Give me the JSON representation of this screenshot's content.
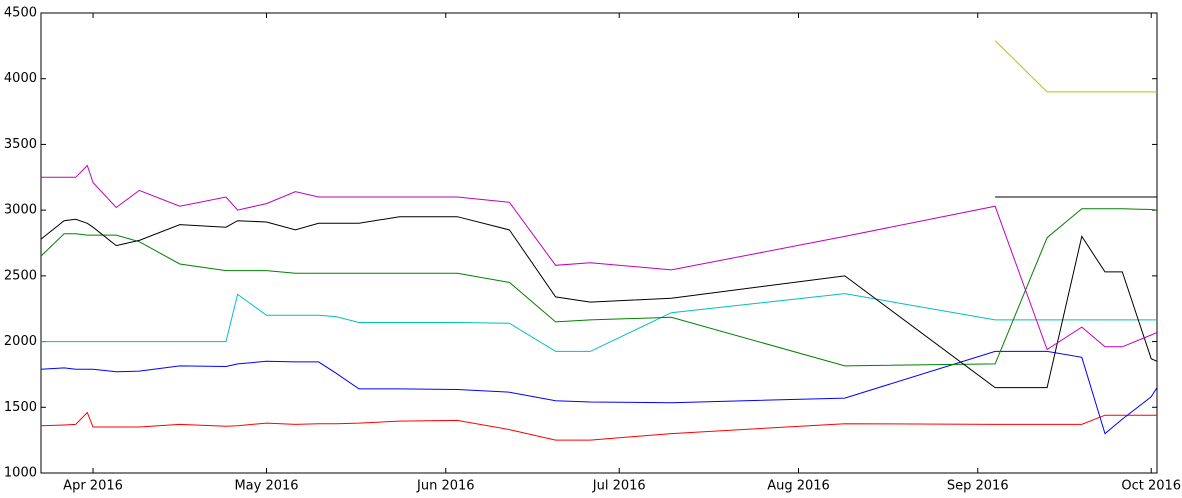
{
  "chart_data": {
    "type": "line",
    "x": [
      "2016-03-23",
      "2016-03-27",
      "2016-03-29",
      "2016-03-31",
      "2016-04-01",
      "2016-04-05",
      "2016-04-09",
      "2016-04-16",
      "2016-04-24",
      "2016-04-26",
      "2016-05-01",
      "2016-05-06",
      "2016-05-10",
      "2016-05-13",
      "2016-05-17",
      "2016-05-24",
      "2016-06-03",
      "2016-06-12",
      "2016-06-20",
      "2016-06-26",
      "2016-07-10",
      "2016-08-09",
      "2016-09-04",
      "2016-09-13",
      "2016-09-19",
      "2016-09-23",
      "2016-09-26",
      "2016-10-01",
      "2016-10-02"
    ],
    "series": [
      {
        "color": "#ff0000",
        "values": [
          1360,
          1365,
          1370,
          1460,
          1350,
          1350,
          1350,
          1370,
          1355,
          1360,
          1380,
          1370,
          1375,
          1375,
          1380,
          1395,
          1400,
          1330,
          1250,
          1250,
          1300,
          1375,
          1370,
          1370,
          1370,
          1440,
          1440,
          1440,
          1440
        ]
      },
      {
        "color": "#0000ff",
        "values": [
          1790,
          1800,
          1790,
          1790,
          1790,
          1770,
          1775,
          1815,
          1810,
          1830,
          1850,
          1845,
          1845,
          1760,
          1640,
          1640,
          1635,
          1615,
          1550,
          1540,
          1535,
          1570,
          1925,
          1925,
          1880,
          1300,
          1410,
          1580,
          1650
        ]
      },
      {
        "color": "#00bfbf",
        "values": [
          2000,
          2000,
          2000,
          2000,
          2000,
          2000,
          2000,
          2000,
          2000,
          2360,
          2200,
          2200,
          2200,
          2190,
          2145,
          2145,
          2145,
          2140,
          1925,
          1925,
          2220,
          2365,
          2165,
          2165,
          2165,
          2165,
          2165,
          2165,
          2165
        ]
      },
      {
        "color": "#008000",
        "values": [
          2650,
          2820,
          2820,
          2810,
          2810,
          2810,
          2760,
          2590,
          2540,
          2540,
          2540,
          2520,
          2520,
          2520,
          2520,
          2520,
          2520,
          2450,
          2150,
          2165,
          2185,
          1815,
          1830,
          2790,
          3010,
          3010,
          3010,
          3005,
          3000
        ]
      },
      {
        "color": "#000000",
        "values": [
          2780,
          2920,
          2930,
          2900,
          2870,
          2730,
          2770,
          2890,
          2870,
          2920,
          2910,
          2850,
          2900,
          2900,
          2900,
          2950,
          2950,
          2850,
          2340,
          2300,
          2330,
          2500,
          1650,
          1650,
          2800,
          2530,
          2530,
          1870,
          1850
        ]
      },
      {
        "color": "#bf00bf",
        "values": [
          3250,
          3250,
          3250,
          3340,
          3210,
          3020,
          3150,
          3030,
          3100,
          3000,
          3050,
          3140,
          3100,
          3100,
          3100,
          3100,
          3100,
          3060,
          2580,
          2600,
          2545,
          2800,
          3030,
          1940,
          2110,
          1960,
          1960,
          2050,
          2070
        ]
      },
      {
        "color": "#bfbf00",
        "values": [
          null,
          null,
          null,
          null,
          null,
          null,
          null,
          null,
          null,
          null,
          null,
          null,
          null,
          null,
          null,
          null,
          null,
          null,
          null,
          null,
          null,
          null,
          4290,
          3900,
          3900,
          3900,
          3900,
          3900,
          3900
        ]
      },
      {
        "color": "#000000",
        "values": [
          null,
          null,
          null,
          null,
          null,
          null,
          null,
          null,
          null,
          null,
          null,
          null,
          null,
          null,
          null,
          null,
          null,
          null,
          null,
          null,
          null,
          null,
          3100,
          3100,
          3100,
          3100,
          3100,
          3100,
          3100
        ]
      }
    ],
    "xlim": [
      "2016-03-23",
      "2016-10-02"
    ],
    "xticks": [
      {
        "value": "2016-04-01",
        "label": "Apr 2016"
      },
      {
        "value": "2016-05-01",
        "label": "May 2016"
      },
      {
        "value": "2016-06-01",
        "label": "Jun 2016"
      },
      {
        "value": "2016-07-01",
        "label": "Jul 2016"
      },
      {
        "value": "2016-08-01",
        "label": "Aug 2016"
      },
      {
        "value": "2016-09-01",
        "label": "Sep 2016"
      },
      {
        "value": "2016-10-01",
        "label": "Oct 2016"
      }
    ],
    "ylim": [
      1000,
      4500
    ],
    "yticks": [
      1000,
      1500,
      2000,
      2500,
      3000,
      3500,
      4000,
      4500
    ]
  }
}
